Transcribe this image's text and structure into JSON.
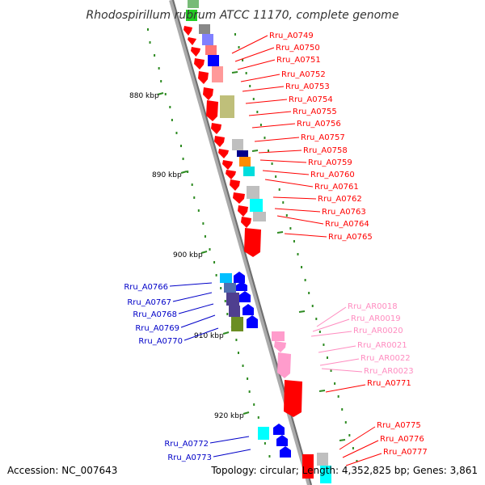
{
  "title": "Rhodospirillum rubrum ATCC 11170, complete genome",
  "footer": {
    "accession": "Accession: NC_007643",
    "topology": "Topology: circular; Length: 4,352,825 bp; Genes: 3,861"
  },
  "colors": {
    "backbone": "#8c8c8c",
    "tick": "#2e8b22",
    "forward_label": "#ff0000",
    "reverse_label": "#0000c8",
    "rna_label": "#ff8cc0",
    "forward_gene": "#ff0000",
    "reverse_gene": "#0000ff",
    "rna_gene": "#ff9ccc"
  },
  "ticks": [
    {
      "label": "880 kbp"
    },
    {
      "label": "890 kbp"
    },
    {
      "label": "900 kbp"
    },
    {
      "label": "910 kbp"
    },
    {
      "label": "920 kbp"
    }
  ],
  "labels": [
    {
      "text": "Rru_A0749",
      "group": "forward"
    },
    {
      "text": "Rru_A0750",
      "group": "forward"
    },
    {
      "text": "Rru_A0751",
      "group": "forward"
    },
    {
      "text": "Rru_A0752",
      "group": "forward"
    },
    {
      "text": "Rru_A0753",
      "group": "forward"
    },
    {
      "text": "Rru_A0754",
      "group": "forward"
    },
    {
      "text": "Rru_A0755",
      "group": "forward"
    },
    {
      "text": "Rru_A0756",
      "group": "forward"
    },
    {
      "text": "Rru_A0757",
      "group": "forward"
    },
    {
      "text": "Rru_A0758",
      "group": "forward"
    },
    {
      "text": "Rru_A0759",
      "group": "forward"
    },
    {
      "text": "Rru_A0760",
      "group": "forward"
    },
    {
      "text": "Rru_A0761",
      "group": "forward"
    },
    {
      "text": "Rru_A0762",
      "group": "forward"
    },
    {
      "text": "Rru_A0763",
      "group": "forward"
    },
    {
      "text": "Rru_A0764",
      "group": "forward"
    },
    {
      "text": "Rru_A0765",
      "group": "forward"
    },
    {
      "text": "Rru_A0766",
      "group": "reverse"
    },
    {
      "text": "Rru_A0767",
      "group": "reverse"
    },
    {
      "text": "Rru_A0768",
      "group": "reverse"
    },
    {
      "text": "Rru_A0769",
      "group": "reverse"
    },
    {
      "text": "Rru_A0770",
      "group": "reverse"
    },
    {
      "text": "Rru_AR0018",
      "group": "rna"
    },
    {
      "text": "Rru_AR0019",
      "group": "rna"
    },
    {
      "text": "Rru_AR0020",
      "group": "rna"
    },
    {
      "text": "Rru_AR0021",
      "group": "rna"
    },
    {
      "text": "Rru_AR0022",
      "group": "rna"
    },
    {
      "text": "Rru_AR0023",
      "group": "rna"
    },
    {
      "text": "Rru_A0771",
      "group": "forward"
    },
    {
      "text": "Rru_A0772",
      "group": "reverse"
    },
    {
      "text": "Rru_A0773",
      "group": "reverse"
    },
    {
      "text": "Rru_A0775",
      "group": "forward"
    },
    {
      "text": "Rru_A0776",
      "group": "forward"
    },
    {
      "text": "Rru_A0777",
      "group": "forward"
    }
  ]
}
